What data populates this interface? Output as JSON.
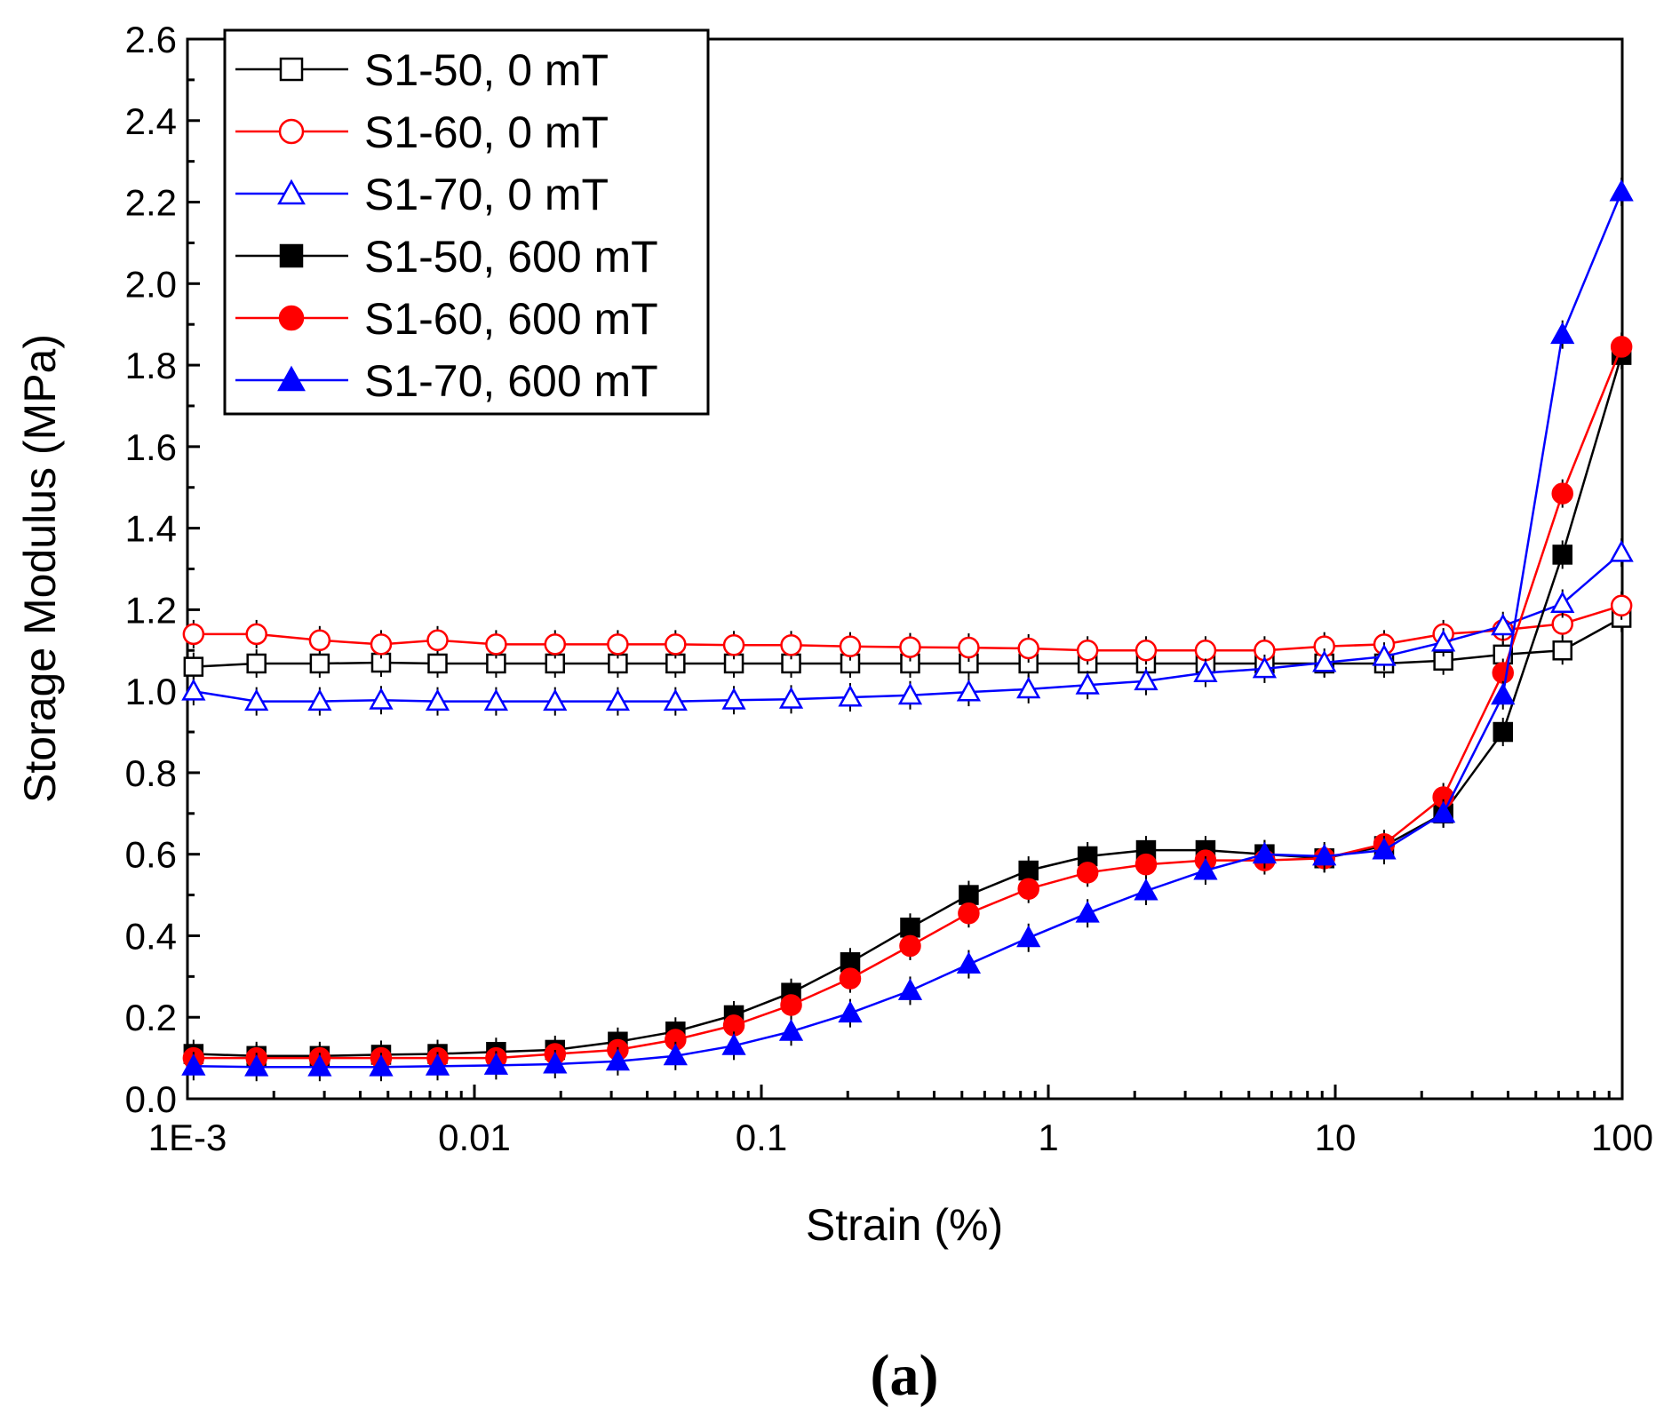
{
  "chart_data": {
    "type": "line",
    "xscale": "log",
    "xlabel": "Strain (%)",
    "ylabel": "Storage Modulus (MPa)",
    "xlim": [
      0.001,
      100
    ],
    "ylim": [
      0.0,
      2.6
    ],
    "yticks": [
      "0.0",
      "0.2",
      "0.4",
      "0.6",
      "0.8",
      "1.0",
      "1.2",
      "1.4",
      "1.6",
      "1.8",
      "2.0",
      "2.2",
      "2.4",
      "2.6"
    ],
    "yticks_values": [
      0,
      0.2,
      0.4,
      0.6,
      0.8,
      1.0,
      1.2,
      1.4,
      1.6,
      1.8,
      2.0,
      2.2,
      2.4,
      2.6
    ],
    "xticks": [
      "1E-3",
      "0.01",
      "0.1",
      "1",
      "10",
      "100"
    ],
    "xticks_values": [
      0.001,
      0.01,
      0.1,
      1,
      10,
      100
    ],
    "caption": "(a)",
    "legend_position": "top-left",
    "x": [
      0.00105,
      0.00174,
      0.00289,
      0.00473,
      0.00744,
      0.0119,
      0.0191,
      0.0316,
      0.0502,
      0.0802,
      0.127,
      0.204,
      0.33,
      0.528,
      0.853,
      1.37,
      2.19,
      3.53,
      5.67,
      9.16,
      14.8,
      23.8,
      38.4,
      61.9,
      99.4
    ],
    "series": [
      {
        "name": "S1-50, 0 mT",
        "color": "#000000",
        "marker": "square",
        "filled": false,
        "values": [
          1.06,
          1.068,
          1.068,
          1.07,
          1.068,
          1.068,
          1.068,
          1.068,
          1.068,
          1.068,
          1.068,
          1.068,
          1.068,
          1.068,
          1.068,
          1.068,
          1.068,
          1.068,
          1.068,
          1.068,
          1.068,
          1.075,
          1.09,
          1.1,
          1.18
        ]
      },
      {
        "name": "S1-60, 0 mT",
        "color": "#ff0000",
        "marker": "circle",
        "filled": false,
        "values": [
          1.14,
          1.14,
          1.125,
          1.115,
          1.125,
          1.115,
          1.115,
          1.115,
          1.115,
          1.113,
          1.113,
          1.11,
          1.108,
          1.107,
          1.105,
          1.1,
          1.1,
          1.1,
          1.1,
          1.11,
          1.115,
          1.14,
          1.15,
          1.165,
          1.21
        ]
      },
      {
        "name": "S1-70, 0 mT",
        "color": "#0000ff",
        "marker": "triangle",
        "filled": false,
        "values": [
          1.0,
          0.975,
          0.975,
          0.978,
          0.975,
          0.975,
          0.975,
          0.975,
          0.975,
          0.978,
          0.98,
          0.985,
          0.99,
          0.998,
          1.005,
          1.015,
          1.025,
          1.045,
          1.055,
          1.07,
          1.085,
          1.12,
          1.16,
          1.215,
          1.34
        ]
      },
      {
        "name": "S1-50, 600 mT",
        "color": "#000000",
        "marker": "square",
        "filled": true,
        "values": [
          0.11,
          0.105,
          0.105,
          0.108,
          0.11,
          0.115,
          0.12,
          0.14,
          0.165,
          0.205,
          0.26,
          0.335,
          0.42,
          0.5,
          0.56,
          0.595,
          0.61,
          0.61,
          0.6,
          0.59,
          0.62,
          0.7,
          0.9,
          1.335,
          1.825
        ]
      },
      {
        "name": "S1-60, 600 mT",
        "color": "#ff0000",
        "marker": "circle",
        "filled": true,
        "values": [
          0.1,
          0.1,
          0.1,
          0.1,
          0.1,
          0.1,
          0.11,
          0.12,
          0.145,
          0.18,
          0.23,
          0.295,
          0.375,
          0.455,
          0.515,
          0.555,
          0.575,
          0.585,
          0.585,
          0.59,
          0.625,
          0.74,
          1.045,
          1.485,
          1.845
        ]
      },
      {
        "name": "S1-70, 600 mT",
        "color": "#0000ff",
        "marker": "triangle",
        "filled": true,
        "values": [
          0.08,
          0.078,
          0.078,
          0.078,
          0.08,
          0.082,
          0.085,
          0.092,
          0.105,
          0.13,
          0.165,
          0.21,
          0.265,
          0.33,
          0.395,
          0.455,
          0.51,
          0.56,
          0.6,
          0.595,
          0.61,
          0.7,
          0.99,
          1.875,
          2.225
        ]
      }
    ]
  }
}
